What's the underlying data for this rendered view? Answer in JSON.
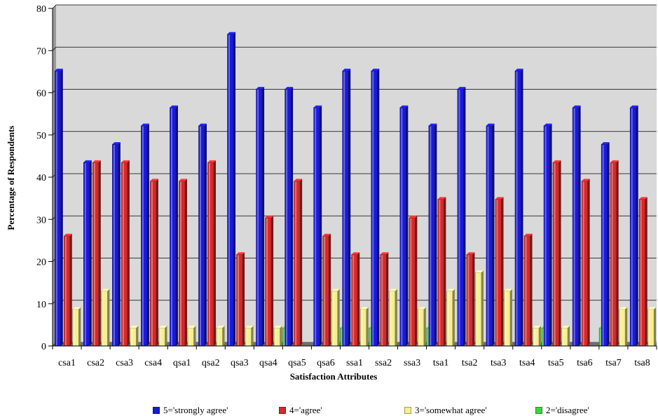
{
  "chart_data": {
    "type": "bar",
    "title": "",
    "xlabel": "Satisfaction Attributes",
    "ylabel": "Percentage of Respondents",
    "ylim": [
      0,
      80
    ],
    "yticks": [
      0,
      10,
      20,
      30,
      40,
      50,
      60,
      70,
      80
    ],
    "grid": true,
    "legend_position": "bottom",
    "categories": [
      "csa1",
      "csa2",
      "csa3",
      "csa4",
      "qsa1",
      "qsa2",
      "qsa3",
      "qsa4",
      "qsa5",
      "qsa6",
      "ssa1",
      "ssa2",
      "ssa3",
      "tsa1",
      "tsa2",
      "tsa3",
      "tsa4",
      "tsa5",
      "tsa6",
      "tsa7",
      "tsa8"
    ],
    "series": [
      {
        "name": "5='strongly agree'",
        "color": "#1a1ad6",
        "values": [
          65.2,
          43.5,
          47.8,
          52.2,
          56.5,
          52.2,
          73.9,
          60.9,
          60.9,
          56.5,
          65.2,
          65.2,
          56.5,
          52.2,
          60.9,
          52.2,
          65.2,
          52.2,
          56.5,
          47.8,
          56.5
        ]
      },
      {
        "name": "4='agree'",
        "color": "#d32a2a",
        "values": [
          26.1,
          43.5,
          43.5,
          39.1,
          39.1,
          43.5,
          21.7,
          30.4,
          39.1,
          26.1,
          21.7,
          21.7,
          30.4,
          34.8,
          21.7,
          34.8,
          26.1,
          43.5,
          39.1,
          43.5,
          34.8
        ]
      },
      {
        "name": "3='somewhat agree'",
        "color": "#f5ef8f",
        "values": [
          8.7,
          13.0,
          4.3,
          4.3,
          4.3,
          4.3,
          4.3,
          4.3,
          0,
          13.0,
          8.7,
          13.0,
          8.7,
          13.0,
          17.4,
          13.0,
          4.3,
          4.3,
          0,
          8.7,
          8.7
        ]
      },
      {
        "name": "2='disagree'",
        "color": "#3fd33f",
        "values": [
          0,
          0,
          0,
          0,
          0,
          0,
          0,
          4.3,
          0,
          4.3,
          4.3,
          0,
          4.3,
          0,
          0,
          0,
          4.3,
          0,
          4.3,
          0,
          0
        ]
      }
    ]
  }
}
